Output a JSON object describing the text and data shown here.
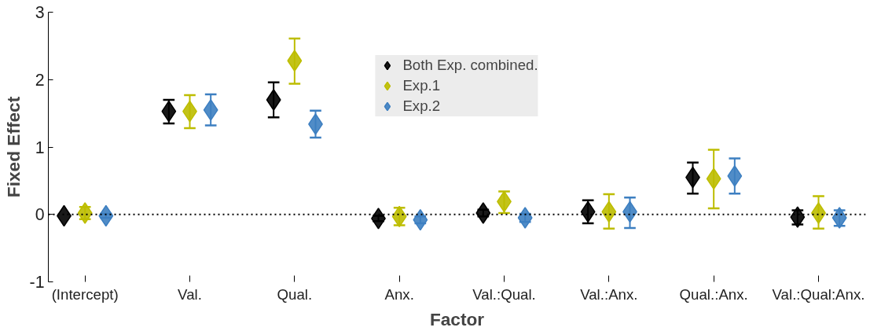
{
  "chart_data": {
    "type": "scatter",
    "xlabel": "Factor",
    "ylabel": "Fixed Effect",
    "categories": [
      "(Intercept)",
      "Val.",
      "Qual.",
      "Anx.",
      "Val.:Qual.",
      "Val.:Anx.",
      "Qual.:Anx.",
      "Val.:Qual:Anx."
    ],
    "series": [
      {
        "name": "Both Exp. combined.",
        "color": "#000000",
        "values": [
          -0.02,
          1.53,
          1.7,
          -0.06,
          0.02,
          0.04,
          0.55,
          -0.04
        ],
        "errors": [
          null,
          [
            1.35,
            1.7
          ],
          [
            1.44,
            1.96
          ],
          [
            -0.1,
            -0.02
          ],
          [
            -0.03,
            0.07
          ],
          [
            -0.13,
            0.21
          ],
          [
            0.31,
            0.77
          ],
          [
            -0.15,
            0.06
          ]
        ]
      },
      {
        "name": "Exp.1",
        "color": "#bdbd00",
        "values": [
          0.02,
          1.53,
          2.28,
          -0.03,
          0.19,
          0.04,
          0.53,
          0.02
        ],
        "errors": [
          [
            -0.07,
            0.11
          ],
          [
            1.28,
            1.77
          ],
          [
            1.94,
            2.61
          ],
          [
            -0.16,
            0.1
          ],
          [
            0.02,
            0.34
          ],
          [
            -0.21,
            0.3
          ],
          [
            0.09,
            0.96
          ],
          [
            -0.21,
            0.27
          ]
        ]
      },
      {
        "name": "Exp.2",
        "color": "#3d7fc1",
        "values": [
          -0.02,
          1.55,
          1.34,
          -0.08,
          -0.05,
          0.04,
          0.57,
          -0.05
        ],
        "errors": [
          [
            -0.05,
            0.01
          ],
          [
            1.32,
            1.78
          ],
          [
            1.14,
            1.54
          ],
          [
            -0.13,
            -0.03
          ],
          [
            -0.11,
            0.01
          ],
          [
            -0.2,
            0.25
          ],
          [
            0.31,
            0.83
          ],
          [
            -0.17,
            0.06
          ]
        ]
      }
    ],
    "ylim": [
      -1,
      3
    ],
    "yticks": [
      -1,
      0,
      1,
      2,
      3
    ],
    "grid": false,
    "legend": "top",
    "marker": "diamond",
    "ref_lines": [
      {
        "axis": "y",
        "value": 0,
        "color": "#000000",
        "line_style": "dotted"
      }
    ]
  }
}
